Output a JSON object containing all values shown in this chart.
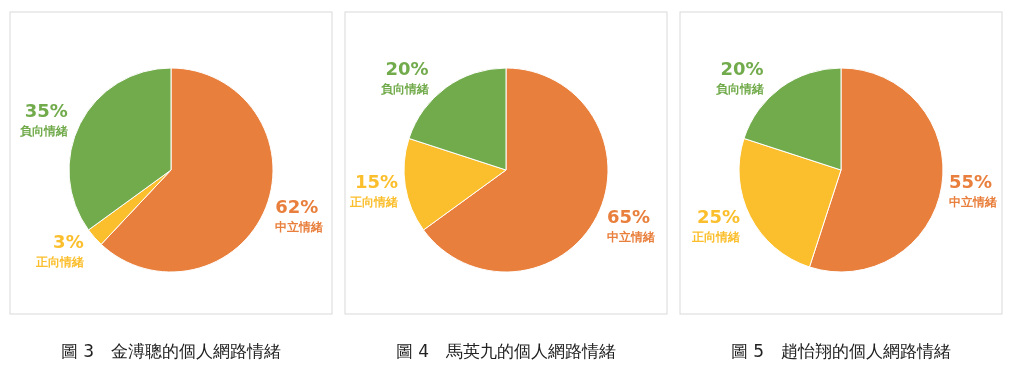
{
  "chart_data": [
    {
      "type": "pie",
      "title": "圖 3　金溥聰的個人網路情緒",
      "categories": [
        "中立情緒",
        "正向情緒",
        "負向情緒"
      ],
      "values": [
        62,
        3,
        35
      ],
      "colors": [
        "#e97f3c",
        "#fbbf2d",
        "#72ab4c"
      ],
      "value_labels": [
        "62%",
        "3%",
        "35%"
      ],
      "data_labels": true
    },
    {
      "type": "pie",
      "title": "圖 4　馬英九的個人網路情緒",
      "categories": [
        "中立情緒",
        "正向情緒",
        "負向情緒"
      ],
      "values": [
        65,
        15,
        20
      ],
      "colors": [
        "#e97f3c",
        "#fbbf2d",
        "#72ab4c"
      ],
      "value_labels": [
        "65%",
        "15%",
        "20%"
      ],
      "data_labels": true
    },
    {
      "type": "pie",
      "title": "圖 5　趙怡翔的個人網路情緒",
      "categories": [
        "中立情緒",
        "正向情緒",
        "負向情緒"
      ],
      "values": [
        55,
        25,
        20
      ],
      "colors": [
        "#e97f3c",
        "#fbbf2d",
        "#72ab4c"
      ],
      "value_labels": [
        "55%",
        "25%",
        "20%"
      ],
      "data_labels": true
    }
  ]
}
